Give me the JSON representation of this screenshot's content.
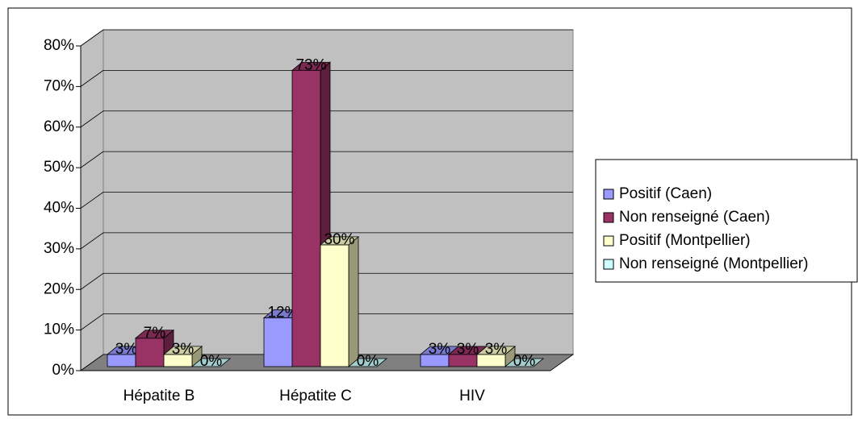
{
  "chart_data": {
    "type": "bar",
    "categories": [
      "Hépatite B",
      "Hépatite C",
      "HIV"
    ],
    "series": [
      {
        "name": "Positif (Caen)",
        "color": "#9999ff",
        "values": [
          3,
          12,
          3
        ],
        "value_labels": [
          "3%",
          "12%",
          "3%"
        ]
      },
      {
        "name": "Non renseigné (Caen)",
        "color": "#993366",
        "values": [
          7,
          73,
          3
        ],
        "value_labels": [
          "7%",
          "73%",
          "3%"
        ]
      },
      {
        "name": "Positif (Montpellier)",
        "color": "#ffffcc",
        "values": [
          3,
          30,
          3
        ],
        "value_labels": [
          "3%",
          "30%",
          "3%"
        ]
      },
      {
        "name": "Non renseigné (Montpellier)",
        "color": "#ccffff",
        "values": [
          0,
          0,
          0
        ],
        "value_labels": [
          "0%",
          "0%",
          "0%"
        ]
      }
    ],
    "ylim": [
      0,
      80
    ],
    "yticks": [
      {
        "value": 0,
        "label": "0%"
      },
      {
        "value": 10,
        "label": "10%"
      },
      {
        "value": 20,
        "label": "20%"
      },
      {
        "value": 30,
        "label": "30%"
      },
      {
        "value": 40,
        "label": "40%"
      },
      {
        "value": 50,
        "label": "50%"
      },
      {
        "value": 60,
        "label": "60%"
      },
      {
        "value": 70,
        "label": "70%"
      },
      {
        "value": 80,
        "label": "80%"
      }
    ],
    "grid": true,
    "legend": "right"
  }
}
